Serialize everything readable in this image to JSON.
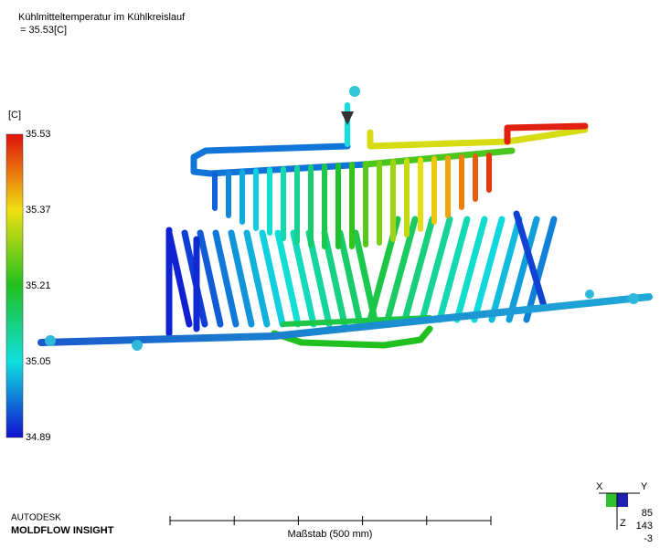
{
  "header": {
    "title": "Kühlmitteltemperatur im Kühlkreislauf",
    "value": "= 35.53[C]"
  },
  "legend": {
    "unit": "[C]",
    "labels": [
      "35.53",
      "35.37",
      "35.21",
      "35.05",
      "34.89"
    ]
  },
  "footer": {
    "brand": "AUTODESK",
    "product": "MOLDFLOW INSIGHT",
    "scale": "Maßstab (500 mm)"
  },
  "triad": {
    "axes": [
      "X",
      "Y",
      "Z"
    ],
    "numbers": [
      "85",
      "143",
      "-3"
    ]
  }
}
